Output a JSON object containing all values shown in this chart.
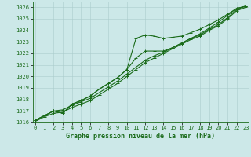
{
  "xlabel": "Graphe pression niveau de la mer (hPa)",
  "ylim": [
    1016,
    1026.5
  ],
  "xlim": [
    -0.3,
    23.3
  ],
  "yticks": [
    1016,
    1017,
    1018,
    1019,
    1020,
    1021,
    1022,
    1023,
    1024,
    1025,
    1026
  ],
  "xticks": [
    0,
    1,
    2,
    3,
    4,
    5,
    6,
    7,
    8,
    9,
    10,
    11,
    12,
    13,
    14,
    15,
    16,
    17,
    18,
    19,
    20,
    21,
    22,
    23
  ],
  "bg_color": "#cce8e8",
  "grid_color": "#aacccc",
  "line_color": "#1a6b1a",
  "series": [
    [
      1016.2,
      1016.6,
      1017.0,
      1017.1,
      1017.5,
      1017.8,
      1018.1,
      1018.6,
      1019.1,
      1019.6,
      1020.2,
      1020.8,
      1021.4,
      1021.8,
      1022.1,
      1022.5,
      1022.9,
      1023.3,
      1023.6,
      1024.1,
      1024.5,
      1025.1,
      1025.8,
      1026.1
    ],
    [
      1016.1,
      1016.5,
      1016.8,
      1016.9,
      1017.3,
      1017.6,
      1017.9,
      1018.4,
      1018.9,
      1019.4,
      1020.0,
      1020.6,
      1021.2,
      1021.6,
      1022.0,
      1022.4,
      1022.8,
      1023.2,
      1023.5,
      1024.0,
      1024.4,
      1025.0,
      1025.7,
      1026.0
    ],
    [
      1016.2,
      1016.6,
      1017.0,
      1016.8,
      1017.6,
      1017.9,
      1018.3,
      1018.9,
      1019.4,
      1019.9,
      1020.6,
      1023.3,
      1023.6,
      1023.5,
      1023.3,
      1023.4,
      1023.5,
      1023.8,
      1024.1,
      1024.5,
      1024.9,
      1025.4,
      1025.9,
      1026.1
    ],
    [
      1016.2,
      1016.6,
      1017.0,
      1016.8,
      1017.6,
      1017.9,
      1018.3,
      1018.9,
      1019.4,
      1019.9,
      1020.6,
      1021.6,
      1022.2,
      1022.2,
      1022.2,
      1022.5,
      1022.9,
      1023.3,
      1023.7,
      1024.2,
      1024.7,
      1025.3,
      1025.9,
      1026.1
    ]
  ],
  "marker": "+",
  "markersize": 3,
  "linewidth": 0.8,
  "xlabel_fontsize": 6,
  "tick_fontsize": 5
}
